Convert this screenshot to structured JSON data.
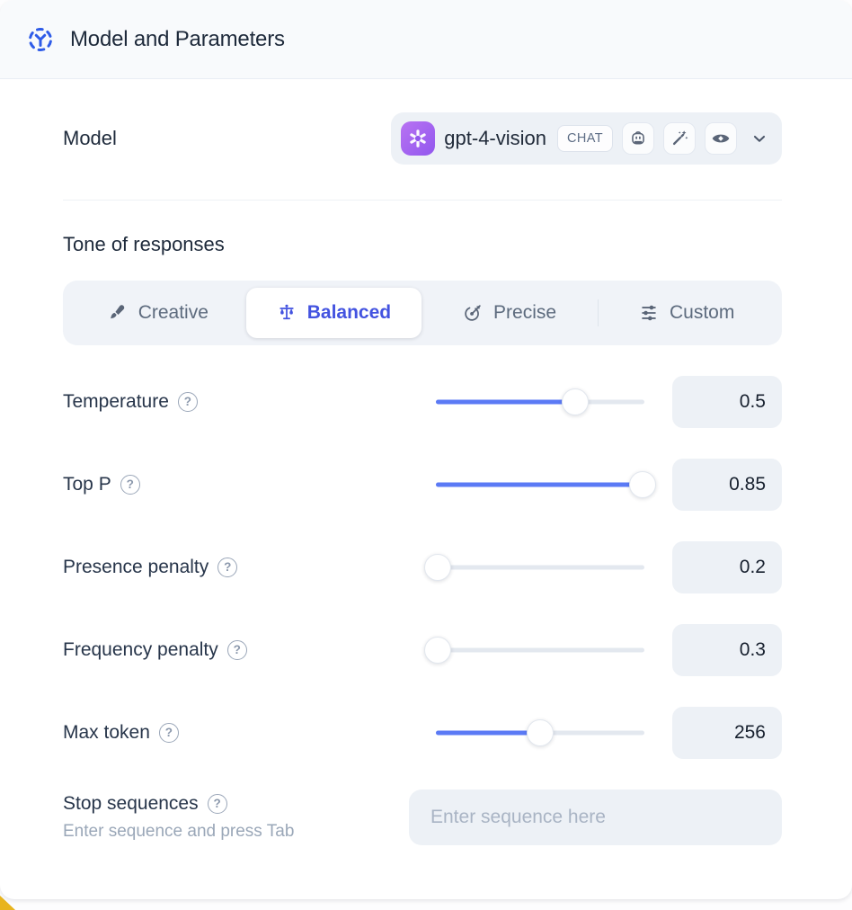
{
  "header": {
    "title": "Model and Parameters"
  },
  "model": {
    "label": "Model",
    "name": "gpt-4-vision",
    "type_badge": "CHAT",
    "capabilities": [
      "assistant-robot",
      "magic-edit",
      "vision"
    ]
  },
  "tone": {
    "heading": "Tone of responses",
    "options": [
      {
        "label": "Creative",
        "icon": "paintbrush-icon",
        "active": false
      },
      {
        "label": "Balanced",
        "icon": "balance-scale-icon",
        "active": true
      },
      {
        "label": "Precise",
        "icon": "target-icon",
        "active": false
      },
      {
        "label": "Custom",
        "icon": "sliders-icon",
        "active": false
      }
    ]
  },
  "parameters": [
    {
      "label": "Temperature",
      "value": "0.5",
      "fill_pct": 67
    },
    {
      "label": "Top P",
      "value": "0.85",
      "fill_pct": 99
    },
    {
      "label": "Presence penalty",
      "value": "0.2",
      "fill_pct": 1
    },
    {
      "label": "Frequency penalty",
      "value": "0.3",
      "fill_pct": 1
    },
    {
      "label": "Max token",
      "value": "256",
      "fill_pct": 50
    }
  ],
  "stop_sequences": {
    "label": "Stop sequences",
    "helper": "Enter sequence and press Tab",
    "placeholder": "Enter sequence here"
  },
  "icons": {
    "help_glyph": "?"
  },
  "colors": {
    "accent_blue": "#4353e0",
    "slider_blue": "#5b7af5",
    "header_icon_blue": "#2f5ce8",
    "control_bg": "#edf1f6",
    "track_gray": "#e3e8ef",
    "text_dark": "#1e2a3b",
    "text_gray": "#5d6b7e",
    "corner_yellow": "#e8b41e",
    "avatar_purple_start": "#b873f2",
    "avatar_purple_end": "#9257ee"
  }
}
